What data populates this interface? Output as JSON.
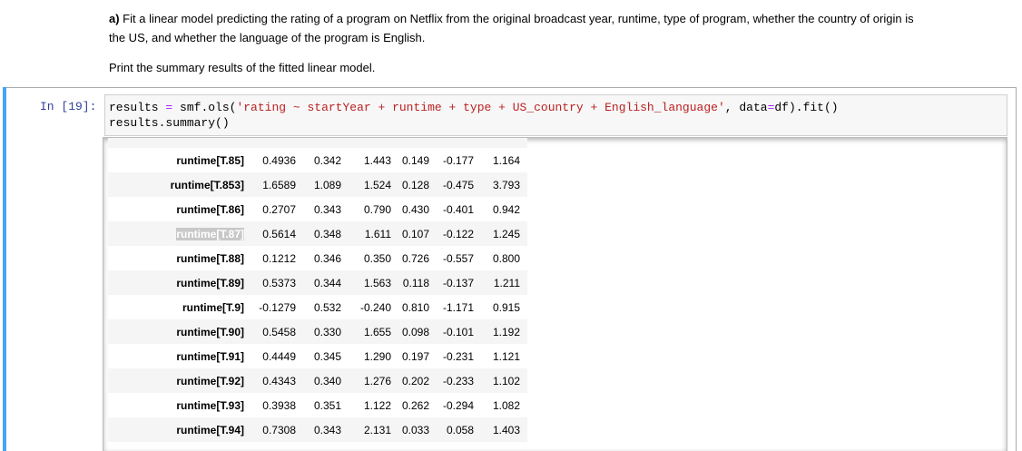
{
  "markdown": {
    "lines": [
      {
        "bold": "a)",
        "text": " Fit a linear model predicting the rating of a program on Netflix from the original broadcast year, runtime, type of program, whether the country of origin is"
      },
      {
        "text": "the US, and whether the language of the program is English."
      }
    ],
    "note": "Print the summary results of the fitted linear model."
  },
  "cell": {
    "prompt": "In [19]:",
    "code": [
      [
        {
          "text": "results ",
          "color": "#000000"
        },
        {
          "text": "=",
          "color": "#aa22ff"
        },
        {
          "text": " smf.ols(",
          "color": "#000000"
        },
        {
          "text": "'rating ~ startYear + runtime + type + US_country + English_language'",
          "color": "#ba2121"
        },
        {
          "text": ", data",
          "color": "#000000"
        },
        {
          "text": "=",
          "color": "#aa22ff"
        },
        {
          "text": "df).fit()",
          "color": "#000000"
        }
      ],
      [
        {
          "text": "results.summary()",
          "color": "#000000"
        }
      ]
    ]
  },
  "table": {
    "rows": [
      {
        "label": "runtime[T.85]",
        "cells": [
          "0.4936",
          "0.342",
          "1.443",
          "0.149",
          "-0.177",
          "1.164"
        ]
      },
      {
        "label": "runtime[T.853]",
        "cells": [
          "1.6589",
          "1.089",
          "1.524",
          "0.128",
          "-0.475",
          "3.793"
        ]
      },
      {
        "label": "runtime[T.86]",
        "cells": [
          "0.2707",
          "0.343",
          "0.790",
          "0.430",
          "-0.401",
          "0.942"
        ]
      },
      {
        "label": "runtime[T.87]",
        "cells": [
          "0.5614",
          "0.348",
          "1.611",
          "0.107",
          "-0.122",
          "1.245"
        ],
        "selected": true
      },
      {
        "label": "runtime[T.88]",
        "cells": [
          "0.1212",
          "0.346",
          "0.350",
          "0.726",
          "-0.557",
          "0.800"
        ]
      },
      {
        "label": "runtime[T.89]",
        "cells": [
          "0.5373",
          "0.344",
          "1.563",
          "0.118",
          "-0.137",
          "1.211"
        ]
      },
      {
        "label": "runtime[T.9]",
        "cells": [
          "-0.1279",
          "0.532",
          "-0.240",
          "0.810",
          "-1.171",
          "0.915"
        ]
      },
      {
        "label": "runtime[T.90]",
        "cells": [
          "0.5458",
          "0.330",
          "1.655",
          "0.098",
          "-0.101",
          "1.192"
        ]
      },
      {
        "label": "runtime[T.91]",
        "cells": [
          "0.4449",
          "0.345",
          "1.290",
          "0.197",
          "-0.231",
          "1.121"
        ]
      },
      {
        "label": "runtime[T.92]",
        "cells": [
          "0.4343",
          "0.340",
          "1.276",
          "0.202",
          "-0.233",
          "1.102"
        ]
      },
      {
        "label": "runtime[T.93]",
        "cells": [
          "0.3938",
          "0.351",
          "1.122",
          "0.262",
          "-0.294",
          "1.082"
        ]
      },
      {
        "label": "runtime[T.94]",
        "cells": [
          "0.7308",
          "0.343",
          "2.131",
          "0.033",
          "0.058",
          "1.403"
        ]
      }
    ]
  }
}
